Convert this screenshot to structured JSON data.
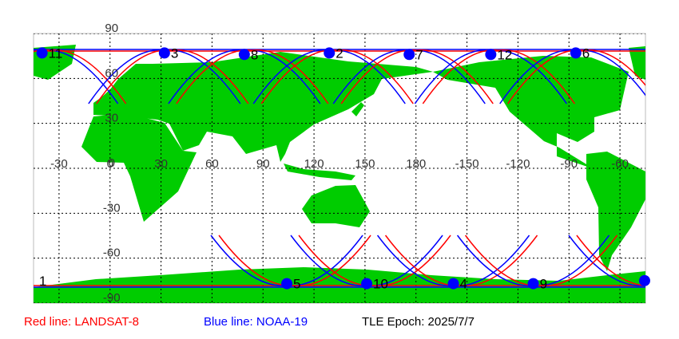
{
  "map": {
    "lon_ticks": [
      -30,
      0,
      30,
      60,
      90,
      120,
      150,
      180,
      -150,
      -120,
      -90,
      -60
    ],
    "lat_ticks": [
      90,
      60,
      30,
      0,
      -30,
      -60,
      -90
    ],
    "points": [
      {
        "label": "11",
        "lon": -40,
        "lat": 77
      },
      {
        "label": "3",
        "lon": 32,
        "lat": 77
      },
      {
        "label": "8",
        "lon": 79,
        "lat": 76
      },
      {
        "label": "2",
        "lon": 129,
        "lat": 77
      },
      {
        "label": "7",
        "lon": 176,
        "lat": 76
      },
      {
        "label": "12",
        "lon": -136,
        "lat": 76
      },
      {
        "label": "6",
        "lon": -86,
        "lat": 77
      },
      {
        "label": "1",
        "lon": -45.5,
        "lat": -75
      },
      {
        "label": "5",
        "lon": 104,
        "lat": -77
      },
      {
        "label": "10",
        "lon": 151,
        "lat": -77
      },
      {
        "label": "4",
        "lon": -158,
        "lat": -77
      },
      {
        "label": "9",
        "lon": -111,
        "lat": -77
      }
    ]
  },
  "legend": {
    "red": "Red line: LANDSAT-8",
    "blue": "Blue line: NOAA-19",
    "epoch": "TLE Epoch: 2025/7/7"
  }
}
